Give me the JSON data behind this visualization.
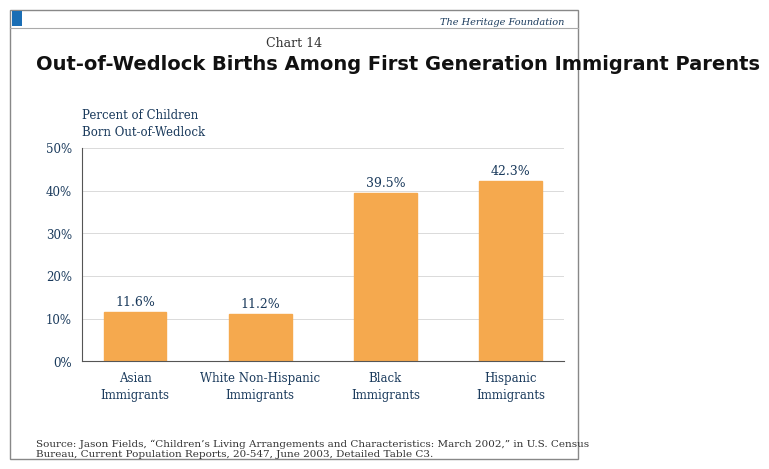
{
  "chart_label": "Chart 14",
  "title": "Out-of-Wedlock Births Among First Generation Immigrant Parents",
  "ylabel_line1": "Percent of Children",
  "ylabel_line2": "Born Out-of-Wedlock",
  "categories": [
    "Asian\nImmigrants",
    "White Non-Hispanic\nImmigrants",
    "Black\nImmigrants",
    "Hispanic\nImmigrants"
  ],
  "values": [
    11.6,
    11.2,
    39.5,
    42.3
  ],
  "value_labels": [
    "11.6%",
    "11.2%",
    "39.5%",
    "42.3%"
  ],
  "bar_color": "#F5A94E",
  "ylim": [
    0,
    50
  ],
  "yticks": [
    0,
    10,
    20,
    30,
    40,
    50
  ],
  "ytick_labels": [
    "0%",
    "10%",
    "20%",
    "30%",
    "40%",
    "50%"
  ],
  "source_text": "Source: Jason Fields, “Children’s Living Arrangements and Characteristics: March 2002,” in U.S. Census\nBureau, Current Population Reports, 20-547, June 2003, Detailed Table C3.",
  "heritage_text": "The Heritage Foundation",
  "bg_color": "#FFFFFF",
  "title_fontsize": 14,
  "chart_label_fontsize": 9,
  "bar_label_fontsize": 9,
  "axis_label_fontsize": 8.5,
  "source_fontsize": 7.5,
  "tick_label_fontsize": 8.5
}
